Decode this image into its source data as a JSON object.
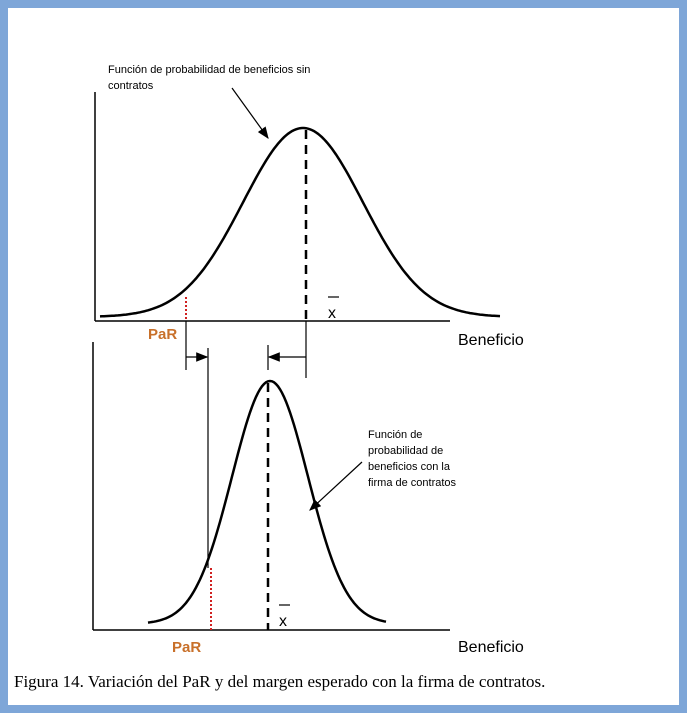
{
  "top": {
    "curve_label": [
      "Función de probabilidad de beneficios sin",
      "contratos"
    ],
    "par": "PaR",
    "mean": "x",
    "axis_label": "Beneficio"
  },
  "bottom": {
    "curve_label": [
      "Función de",
      "probabilidad de",
      "beneficios con la",
      "firma de contratos"
    ],
    "par": "PaR",
    "mean": "x",
    "axis_label": "Beneficio"
  },
  "caption": "Figura 14. Variación del PaR y del margen esperado con la firma de contratos."
}
